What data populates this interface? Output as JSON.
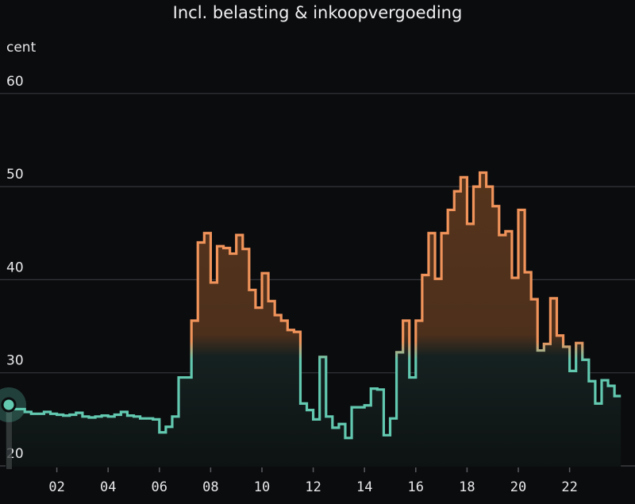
{
  "header": {
    "title": "Incl. belasting & inkoopvergoeding"
  },
  "axis": {
    "unit": "cent"
  },
  "colors": {
    "background": "#0b0c0e",
    "low": "#62c9b0",
    "high": "#f0935a",
    "grid": "#3a3b3e"
  },
  "chart_data": {
    "type": "line",
    "step": true,
    "title": "Incl. belasting & inkoopvergoeding",
    "xlabel": "",
    "ylabel": "cent",
    "ylim": [
      20,
      60
    ],
    "yticks": [
      20,
      30,
      40,
      50,
      60
    ],
    "xticks": [
      "02",
      "04",
      "06",
      "08",
      "10",
      "12",
      "14",
      "16",
      "18",
      "20",
      "22"
    ],
    "interval_minutes": 15,
    "threshold_color_change": 32.5,
    "series": [
      {
        "name": "price",
        "x_hours_start": 0,
        "values": [
          26.3,
          26.1,
          26.1,
          25.8,
          25.6,
          25.6,
          25.8,
          25.6,
          25.5,
          25.4,
          25.5,
          25.7,
          25.3,
          25.2,
          25.3,
          25.4,
          25.3,
          25.5,
          25.8,
          25.4,
          25.3,
          25.1,
          25.1,
          25.0,
          23.6,
          24.2,
          25.3,
          29.5,
          29.5,
          35.6,
          44.0,
          45.0,
          39.7,
          43.6,
          43.4,
          42.8,
          44.8,
          43.3,
          38.9,
          37.0,
          40.7,
          37.7,
          36.2,
          35.6,
          34.6,
          34.4,
          26.7,
          26.0,
          25.0,
          31.7,
          25.3,
          24.1,
          24.5,
          23.0,
          26.3,
          26.3,
          26.5,
          28.3,
          28.2,
          23.3,
          25.1,
          32.2,
          35.6,
          29.5,
          35.6,
          40.5,
          45.0,
          40.1,
          45.0,
          47.5,
          49.5,
          51.0,
          46.0,
          50.0,
          51.5,
          50.0,
          47.9,
          44.8,
          45.2,
          40.2,
          47.5,
          40.8,
          37.9,
          32.4,
          33.1,
          38.0,
          34.0,
          32.8,
          30.2,
          33.2,
          31.4,
          29.1,
          26.7,
          29.2,
          28.6,
          27.5
        ]
      }
    ]
  }
}
